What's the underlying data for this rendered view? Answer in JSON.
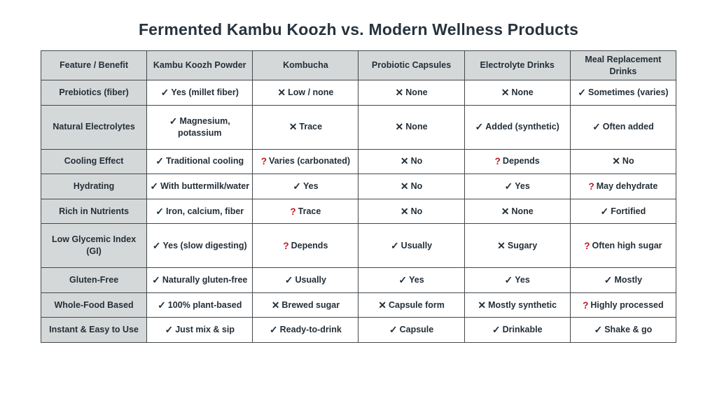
{
  "page_title": "Fermented Kambu Koozh vs. Modern Wellness Products",
  "colors": {
    "ink": "#27333d",
    "cell_text": "#242f38",
    "header_bg": "#d5d8d9",
    "border": "#43484c",
    "question_red": "#bf1722",
    "background": "#ffffff"
  },
  "marks": {
    "check": "✓",
    "cross": "✕",
    "question": "?"
  },
  "chart_data": {
    "type": "table",
    "title": "Fermented Kambu Koozh vs. Modern Wellness Products",
    "columns": [
      "Feature / Benefit",
      "Kambu Koozh Powder",
      "Kombucha",
      "Probiotic Capsules",
      "Electrolyte Drinks",
      "Meal Replacement Drinks"
    ],
    "rows": [
      {
        "feature": "Prebiotics (fiber)",
        "cells": [
          {
            "mark": "check",
            "text": "Yes (millet fiber)"
          },
          {
            "mark": "cross",
            "text": "Low / none"
          },
          {
            "mark": "cross",
            "text": "None"
          },
          {
            "mark": "cross",
            "text": "None"
          },
          {
            "mark": "check",
            "text": "Sometimes (varies)"
          }
        ]
      },
      {
        "feature": "Natural Electrolytes",
        "cells": [
          {
            "mark": "check",
            "text": "Magnesium, potassium"
          },
          {
            "mark": "cross",
            "text": "Trace"
          },
          {
            "mark": "cross",
            "text": "None"
          },
          {
            "mark": "check",
            "text": "Added (synthetic)"
          },
          {
            "mark": "check",
            "text": "Often added"
          }
        ]
      },
      {
        "feature": "Cooling Effect",
        "cells": [
          {
            "mark": "check",
            "text": "Traditional cooling"
          },
          {
            "mark": "question",
            "text": "Varies (carbonated)"
          },
          {
            "mark": "cross",
            "text": "No"
          },
          {
            "mark": "question",
            "text": "Depends"
          },
          {
            "mark": "cross",
            "text": "No"
          }
        ]
      },
      {
        "feature": "Hydrating",
        "cells": [
          {
            "mark": "check",
            "text": "With buttermilk/water"
          },
          {
            "mark": "check",
            "text": "Yes"
          },
          {
            "mark": "cross",
            "text": "No"
          },
          {
            "mark": "check",
            "text": "Yes"
          },
          {
            "mark": "question",
            "text": "May dehydrate"
          }
        ]
      },
      {
        "feature": "Rich in Nutrients",
        "cells": [
          {
            "mark": "check",
            "text": "Iron, calcium, fiber"
          },
          {
            "mark": "question",
            "text": "Trace"
          },
          {
            "mark": "cross",
            "text": "No"
          },
          {
            "mark": "cross",
            "text": "None"
          },
          {
            "mark": "check",
            "text": "Fortified"
          }
        ]
      },
      {
        "feature": "Low Glycemic Index (GI)",
        "cells": [
          {
            "mark": "check",
            "text": "Yes (slow digesting)"
          },
          {
            "mark": "question",
            "text": "Depends"
          },
          {
            "mark": "check",
            "text": "Usually"
          },
          {
            "mark": "cross",
            "text": "Sugary"
          },
          {
            "mark": "question",
            "text": "Often high sugar"
          }
        ]
      },
      {
        "feature": "Gluten-Free",
        "cells": [
          {
            "mark": "check",
            "text": "Naturally gluten-free"
          },
          {
            "mark": "check",
            "text": "Usually"
          },
          {
            "mark": "check",
            "text": "Yes"
          },
          {
            "mark": "check",
            "text": "Yes"
          },
          {
            "mark": "check",
            "text": "Mostly"
          }
        ]
      },
      {
        "feature": "Whole-Food Based",
        "cells": [
          {
            "mark": "check",
            "text": "100% plant-based"
          },
          {
            "mark": "cross",
            "text": "Brewed sugar"
          },
          {
            "mark": "cross",
            "text": "Capsule form"
          },
          {
            "mark": "cross",
            "text": "Mostly synthetic"
          },
          {
            "mark": "question",
            "text": "Highly processed"
          }
        ]
      },
      {
        "feature": "Instant & Easy to Use",
        "cells": [
          {
            "mark": "check",
            "text": "Just mix & sip"
          },
          {
            "mark": "check",
            "text": "Ready-to-drink"
          },
          {
            "mark": "check",
            "text": "Capsule"
          },
          {
            "mark": "check",
            "text": "Drinkable"
          },
          {
            "mark": "check",
            "text": "Shake & go"
          }
        ]
      }
    ]
  }
}
